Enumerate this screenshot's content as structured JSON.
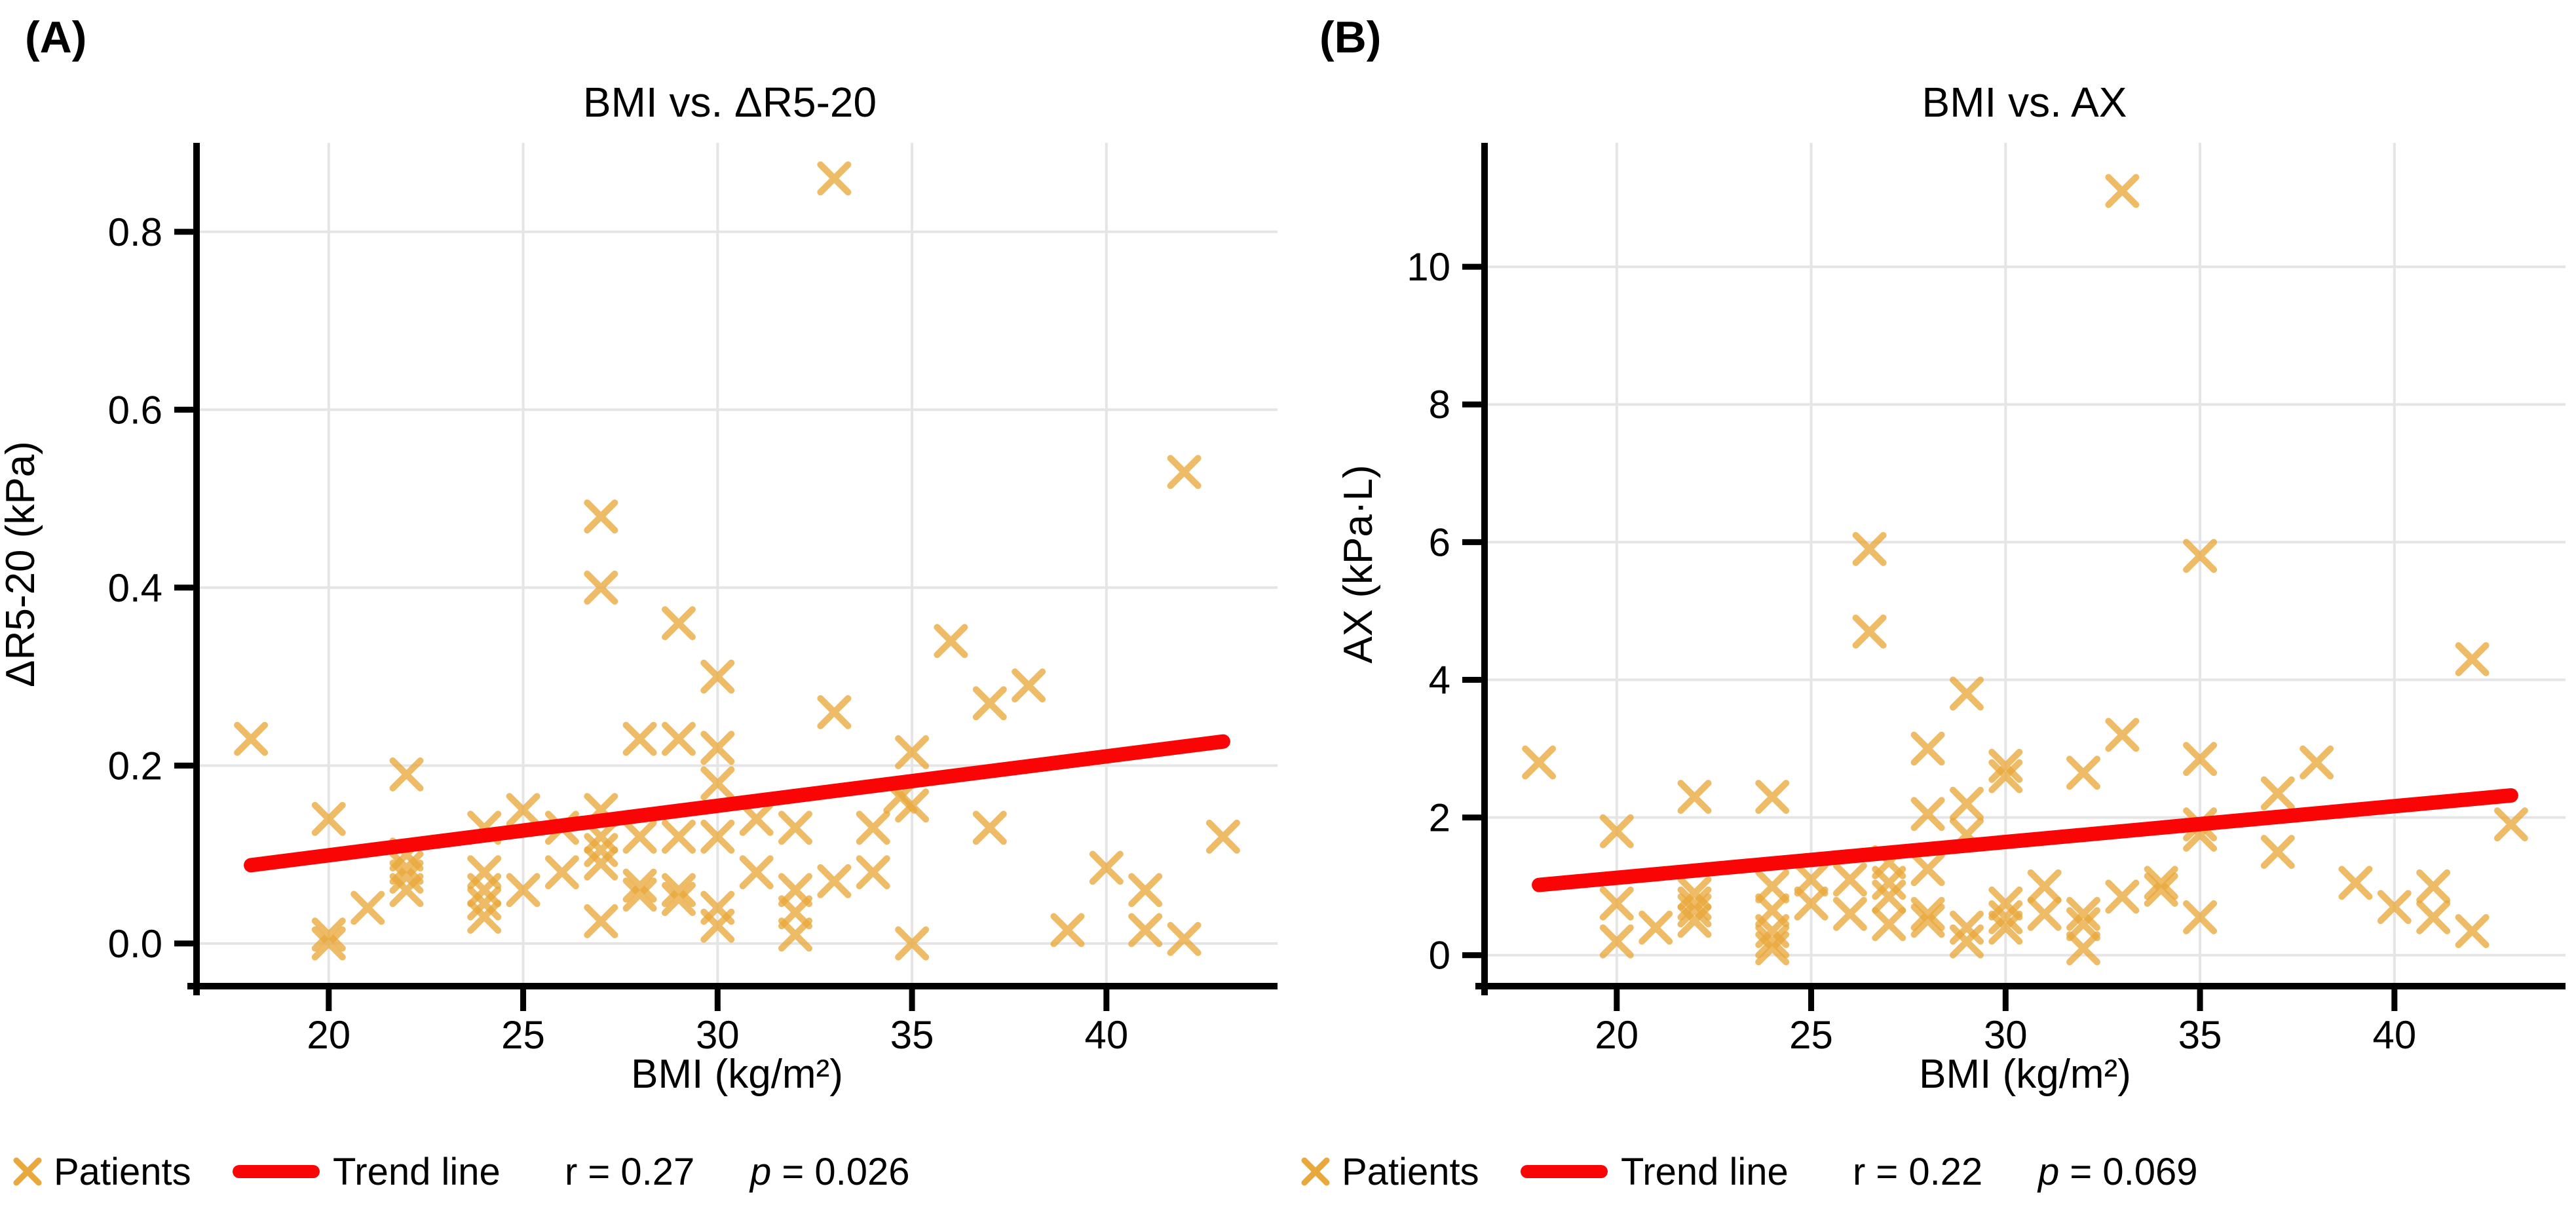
{
  "figure": {
    "background": "#ffffff"
  },
  "colors": {
    "marker": "#E9A83C",
    "marker_opacity": 0.78,
    "trend": "#FA0505",
    "grid": "#E5E5E5",
    "axis": "#000000",
    "text": "#000000"
  },
  "chart_data": [
    {
      "type": "scatter",
      "panel_tag": "(A)",
      "title": "BMI vs. ΔR5-20",
      "xlabel": "BMI (kg/m²)",
      "ylabel": "ΔR5-20 (kPa)",
      "xlim": [
        16.6,
        44.4
      ],
      "ylim": [
        -0.048,
        0.9
      ],
      "xticks": [
        20,
        25,
        30,
        35,
        40
      ],
      "xtick_labels": [
        "20",
        "25",
        "30",
        "35",
        "40"
      ],
      "yticks": [
        0.0,
        0.2,
        0.4,
        0.6,
        0.8
      ],
      "ytick_labels": [
        "0.0",
        "0.2",
        "0.4",
        "0.6",
        "0.8"
      ],
      "grid": true,
      "legend_position": "bottom",
      "ylabel_x": 52,
      "legend": {
        "patients_label": "Patients",
        "trend_label": "Trend line",
        "r_label": "r = 0.27",
        "p_var": "p",
        "p_rest": " = 0.026"
      },
      "series": [
        {
          "name": "Patients",
          "marker": "x",
          "points": [
            [
              18,
              0.23
            ],
            [
              20,
              0.14
            ],
            [
              20,
              0.01
            ],
            [
              20,
              0.0
            ],
            [
              21,
              0.04
            ],
            [
              22,
              0.19
            ],
            [
              22,
              0.1
            ],
            [
              22,
              0.085
            ],
            [
              22,
              0.075
            ],
            [
              22,
              0.06
            ],
            [
              24,
              0.13
            ],
            [
              24,
              0.08
            ],
            [
              24,
              0.06
            ],
            [
              24,
              0.045
            ],
            [
              24,
              0.03
            ],
            [
              25,
              0.15
            ],
            [
              25,
              0.06
            ],
            [
              26,
              0.13
            ],
            [
              26,
              0.08
            ],
            [
              27,
              0.48
            ],
            [
              27,
              0.4
            ],
            [
              27,
              0.15
            ],
            [
              27,
              0.12
            ],
            [
              27,
              0.105
            ],
            [
              27,
              0.09
            ],
            [
              27,
              0.025
            ],
            [
              28,
              0.23
            ],
            [
              28,
              0.12
            ],
            [
              28,
              0.065
            ],
            [
              28,
              0.055
            ],
            [
              29,
              0.36
            ],
            [
              29,
              0.23
            ],
            [
              29,
              0.12
            ],
            [
              29,
              0.06
            ],
            [
              29,
              0.05
            ],
            [
              30,
              0.3
            ],
            [
              30,
              0.22
            ],
            [
              30,
              0.18
            ],
            [
              30,
              0.12
            ],
            [
              30,
              0.04
            ],
            [
              30,
              0.02
            ],
            [
              31,
              0.14
            ],
            [
              31,
              0.08
            ],
            [
              32,
              0.13
            ],
            [
              32,
              0.06
            ],
            [
              32,
              0.035
            ],
            [
              32,
              0.01
            ],
            [
              33,
              0.86
            ],
            [
              33,
              0.26
            ],
            [
              33,
              0.07
            ],
            [
              34,
              0.13
            ],
            [
              34,
              0.08
            ],
            [
              34.7,
              0.165
            ],
            [
              35,
              0.215
            ],
            [
              35,
              0.155
            ],
            [
              35,
              0.0
            ],
            [
              36,
              0.34
            ],
            [
              37,
              0.27
            ],
            [
              37,
              0.13
            ],
            [
              38,
              0.29
            ],
            [
              39,
              0.015
            ],
            [
              40,
              0.085
            ],
            [
              41,
              0.06
            ],
            [
              41,
              0.015
            ],
            [
              42,
              0.53
            ],
            [
              42,
              0.005
            ],
            [
              43,
              0.12
            ]
          ]
        }
      ],
      "trend": {
        "x1": 18,
        "y1": 0.088,
        "x2": 43,
        "y2": 0.227
      }
    },
    {
      "type": "scatter",
      "panel_tag": "(B)",
      "title": "BMI vs. AX",
      "xlabel": "BMI (kg/m²)",
      "ylabel": "AX (kPa·L)",
      "xlim": [
        16.6,
        44.4
      ],
      "ylim": [
        -0.45,
        11.8
      ],
      "xticks": [
        20,
        25,
        30,
        35,
        40
      ],
      "xtick_labels": [
        "20",
        "25",
        "30",
        "35",
        "40"
      ],
      "yticks": [
        0,
        2,
        4,
        6,
        8,
        10
      ],
      "ytick_labels": [
        "0",
        "2",
        "4",
        "6",
        "8",
        "10"
      ],
      "grid": true,
      "legend_position": "bottom",
      "ylabel_x": 128,
      "legend": {
        "patients_label": "Patients",
        "trend_label": "Trend line",
        "r_label": "r = 0.22",
        "p_var": "p",
        "p_rest": " = 0.069"
      },
      "series": [
        {
          "name": "Patients",
          "marker": "x",
          "points": [
            [
              18,
              2.8
            ],
            [
              20,
              1.8
            ],
            [
              20,
              0.75
            ],
            [
              20,
              0.2
            ],
            [
              21,
              0.4
            ],
            [
              22,
              2.3
            ],
            [
              22,
              0.9
            ],
            [
              22,
              0.75
            ],
            [
              22,
              0.65
            ],
            [
              22,
              0.5
            ],
            [
              24,
              2.3
            ],
            [
              24,
              1.0
            ],
            [
              24,
              0.65
            ],
            [
              24,
              0.35
            ],
            [
              24,
              0.2
            ],
            [
              24,
              0.1
            ],
            [
              25,
              1.1
            ],
            [
              25,
              0.75
            ],
            [
              26,
              1.1
            ],
            [
              26,
              0.6
            ],
            [
              26.5,
              5.9
            ],
            [
              26.5,
              4.7
            ],
            [
              27,
              1.35
            ],
            [
              27,
              1.05
            ],
            [
              27,
              0.85
            ],
            [
              27,
              0.45
            ],
            [
              28,
              3.0
            ],
            [
              28,
              2.05
            ],
            [
              28,
              1.25
            ],
            [
              28,
              0.6
            ],
            [
              28,
              0.5
            ],
            [
              29,
              3.8
            ],
            [
              29,
              2.2
            ],
            [
              29,
              1.75
            ],
            [
              29,
              0.4
            ],
            [
              29,
              0.2
            ],
            [
              30,
              2.75
            ],
            [
              30,
              2.6
            ],
            [
              30,
              0.75
            ],
            [
              30,
              0.55
            ],
            [
              30,
              0.4
            ],
            [
              31,
              1.0
            ],
            [
              31,
              0.6
            ],
            [
              32,
              2.65
            ],
            [
              32,
              0.6
            ],
            [
              32,
              0.45
            ],
            [
              32,
              0.1
            ],
            [
              33,
              11.1
            ],
            [
              33,
              3.2
            ],
            [
              33,
              0.85
            ],
            [
              34,
              1.05
            ],
            [
              34,
              0.95
            ],
            [
              35,
              5.8
            ],
            [
              35,
              2.85
            ],
            [
              35,
              1.9
            ],
            [
              35,
              1.75
            ],
            [
              35,
              0.55
            ],
            [
              37,
              2.35
            ],
            [
              37,
              1.5
            ],
            [
              38,
              2.8
            ],
            [
              39,
              1.05
            ],
            [
              40,
              0.7
            ],
            [
              41,
              1.0
            ],
            [
              41,
              0.55
            ],
            [
              42,
              4.3
            ],
            [
              42,
              0.35
            ],
            [
              43,
              1.9
            ]
          ]
        }
      ],
      "trend": {
        "x1": 18,
        "y1": 1.02,
        "x2": 43,
        "y2": 2.32
      }
    }
  ]
}
